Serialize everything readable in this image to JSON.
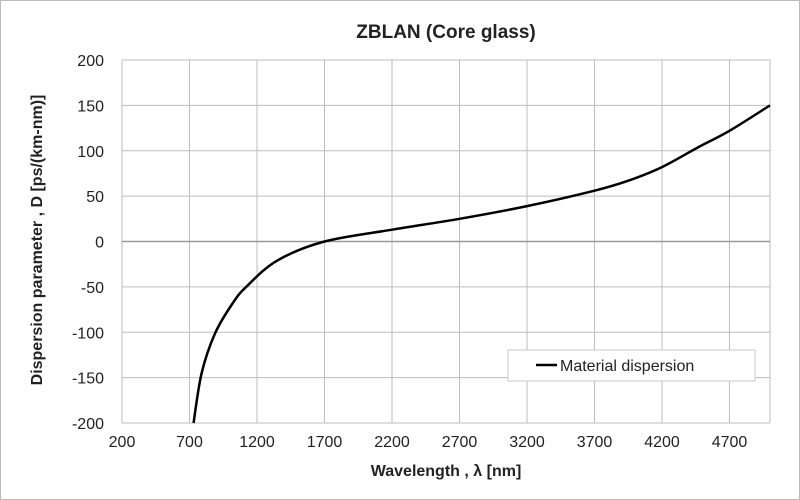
{
  "chart_data": {
    "type": "line",
    "title": "ZBLAN (Core glass)",
    "xlabel": "Wavelength , λ [nm]",
    "ylabel": "Dispersion parameter , D [ps/(km-nm)]",
    "xlim": [
      200,
      5000
    ],
    "ylim": [
      -200,
      200
    ],
    "xticks": [
      200,
      700,
      1200,
      1700,
      2200,
      2700,
      3200,
      3700,
      4200,
      4700
    ],
    "yticks": [
      200,
      150,
      100,
      50,
      0,
      -50,
      -100,
      -150,
      -200
    ],
    "grid": true,
    "legend_position": "bottom-right",
    "series": [
      {
        "name": "Material dispersion",
        "color": "#000000",
        "x": [
          730,
          790,
          890,
          1020,
          1120,
          1350,
          1700,
          2200,
          2700,
          3200,
          3700,
          3950,
          4200,
          4470,
          4700,
          5000
        ],
        "y": [
          -200,
          -145,
          -101,
          -68,
          -50,
          -21,
          0,
          13,
          25,
          39,
          56,
          67,
          82,
          104,
          122,
          150
        ]
      }
    ]
  }
}
